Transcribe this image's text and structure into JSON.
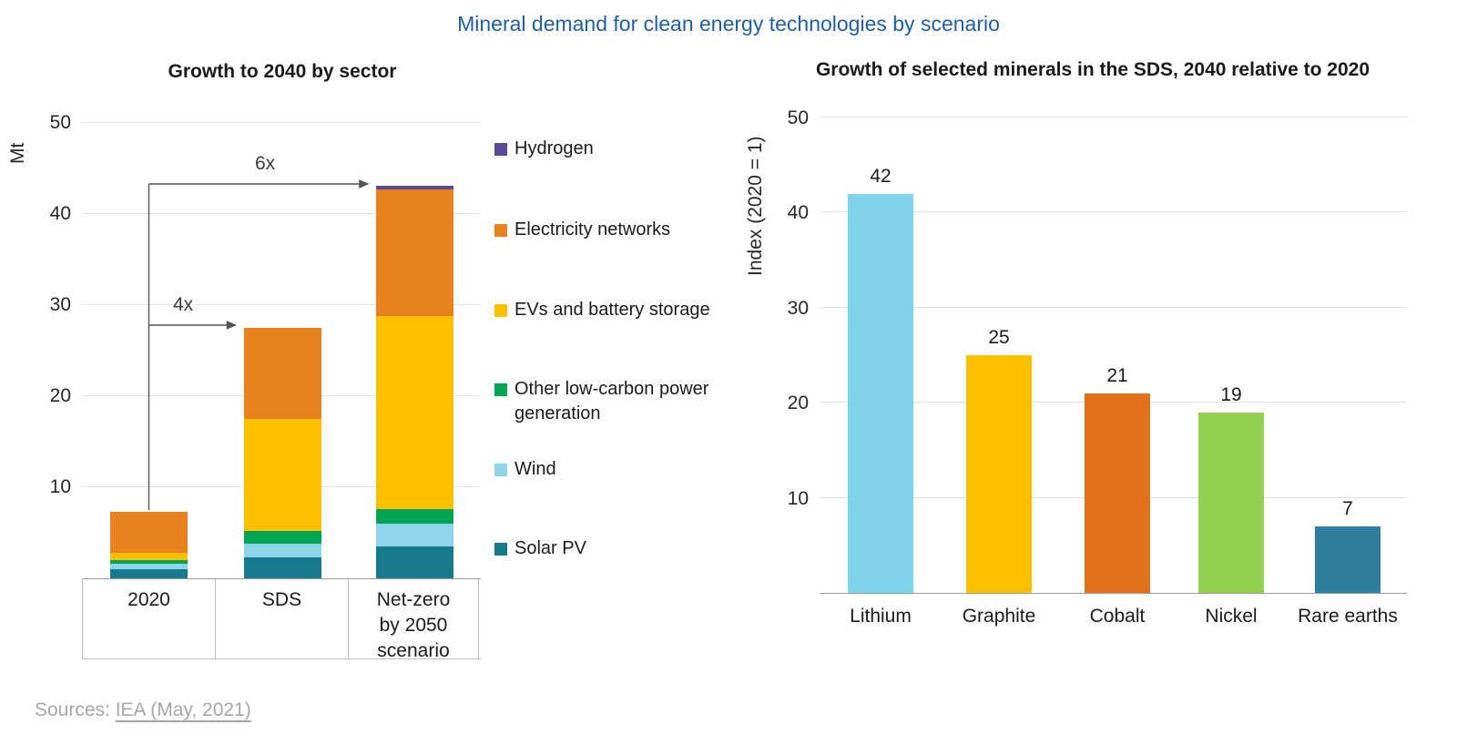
{
  "title": "Mineral demand for clean energy technologies by scenario",
  "accent_color": "#1f5fa8",
  "sources": {
    "label": "Sources:",
    "link": "IEA (May, 2021)"
  },
  "chart_data": [
    {
      "type": "bar",
      "stacked": true,
      "title": "Growth to 2040 by sector",
      "xlabel": "",
      "ylabel": "Mt",
      "ylim": [
        0,
        50
      ],
      "yticks": [
        10,
        20,
        30,
        40,
        50
      ],
      "grid": true,
      "legend_position": "right",
      "categories": [
        "2020",
        "SDS",
        "Net-zero by 2050 scenario"
      ],
      "series": [
        {
          "name": "Solar PV",
          "color": "#16798d",
          "values": [
            1.0,
            2.3,
            3.5
          ]
        },
        {
          "name": "Wind",
          "color": "#8fd4e8",
          "values": [
            0.6,
            1.5,
            2.5
          ]
        },
        {
          "name": "Other low-carbon power generation",
          "color": "#00a651",
          "values": [
            0.4,
            1.4,
            1.6
          ]
        },
        {
          "name": "EVs and battery storage",
          "color": "#ffc000",
          "values": [
            0.8,
            12.3,
            21.2
          ]
        },
        {
          "name": "Electricity networks",
          "color": "#e8821f",
          "values": [
            4.5,
            10.0,
            13.9
          ]
        },
        {
          "name": "Hydrogen",
          "color": "#5a4a9c",
          "values": [
            0,
            0,
            0.4
          ]
        }
      ],
      "totals": [
        7.3,
        27.5,
        43.1
      ],
      "legend_order": [
        "Hydrogen",
        "Electricity networks",
        "EVs and battery storage",
        "Other low-carbon power generation",
        "Wind",
        "Solar PV"
      ],
      "annotations": [
        {
          "label": "4x",
          "from": "2020",
          "to": "SDS"
        },
        {
          "label": "6x",
          "from": "2020",
          "to": "Net-zero by 2050 scenario"
        }
      ]
    },
    {
      "type": "bar",
      "title": "Growth of selected minerals in the SDS, 2040 relative to 2020",
      "xlabel": "",
      "ylabel": "Index (2020 = 1)",
      "ylim": [
        0,
        50
      ],
      "yticks": [
        10,
        20,
        30,
        40,
        50
      ],
      "grid": true,
      "categories": [
        "Lithium",
        "Graphite",
        "Cobalt",
        "Nickel",
        "Rare earths"
      ],
      "values": [
        42,
        25,
        21,
        19,
        7
      ],
      "data_labels": [
        "42",
        "25",
        "21",
        "19",
        "7"
      ],
      "colors": [
        "#7fd3ea",
        "#ffc000",
        "#e2711d",
        "#92d050",
        "#2e7e9e"
      ]
    }
  ]
}
